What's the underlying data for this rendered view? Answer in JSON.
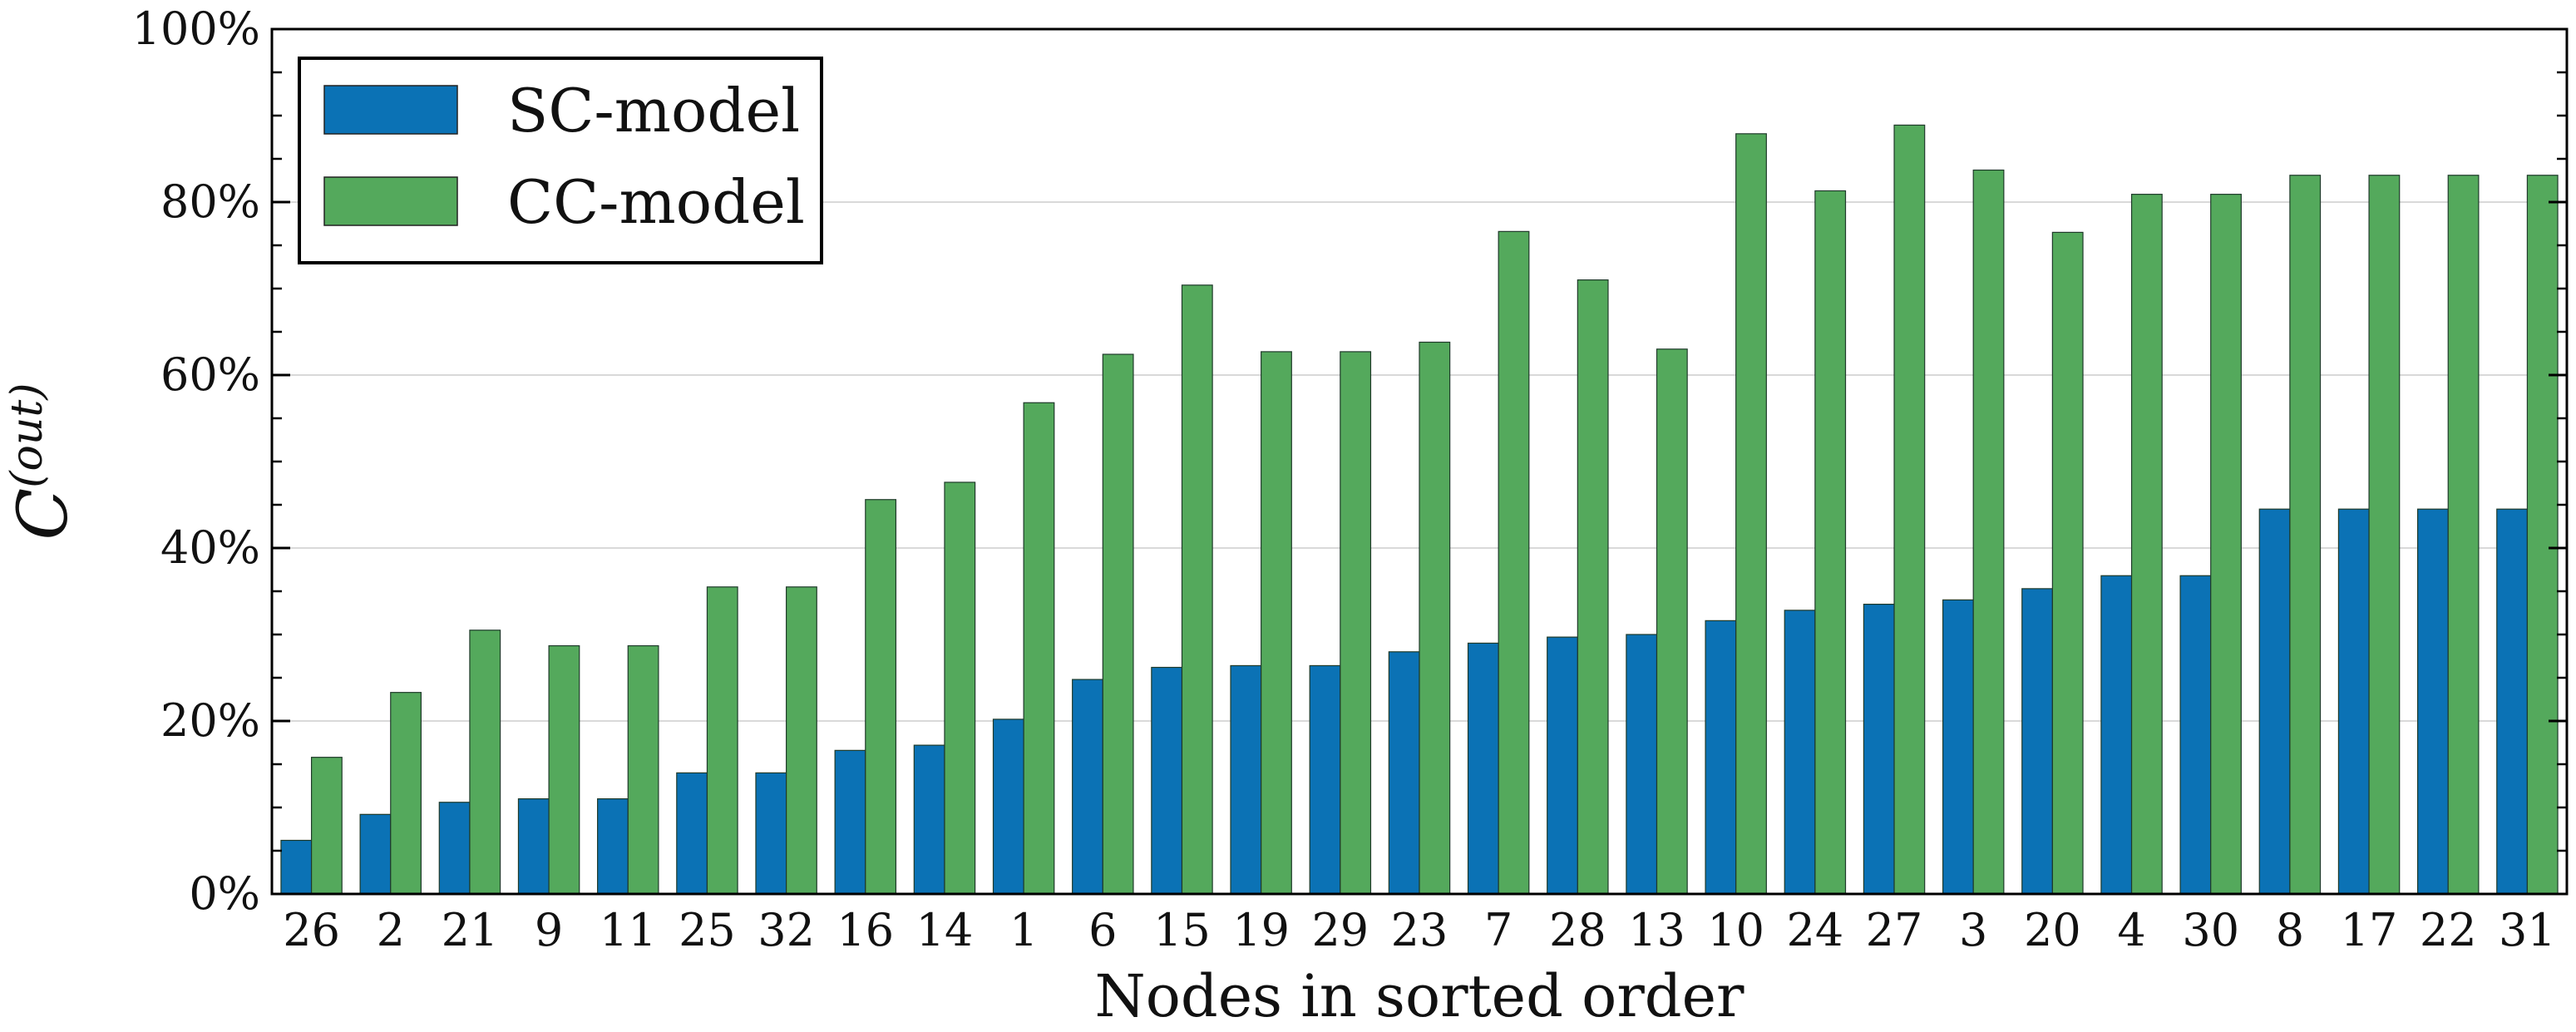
{
  "chart_data": {
    "type": "bar",
    "title": "",
    "xlabel": "Nodes in sorted order",
    "ylabel": "C",
    "ylabel_superscript": "(out)",
    "ylim": [
      0,
      100
    ],
    "y_ticks": [
      "0%",
      "20%",
      "40%",
      "60%",
      "80%",
      "100%"
    ],
    "y_tick_values": [
      0,
      20,
      40,
      60,
      80,
      100
    ],
    "grid": true,
    "legend_position": "top-left",
    "categories": [
      "26",
      "2",
      "21",
      "9",
      "11",
      "25",
      "32",
      "16",
      "14",
      "1",
      "6",
      "15",
      "19",
      "29",
      "23",
      "7",
      "28",
      "13",
      "10",
      "24",
      "27",
      "3",
      "20",
      "4",
      "30",
      "8",
      "17",
      "22",
      "31"
    ],
    "series": [
      {
        "name": "SC-model",
        "color": "#0b72b5",
        "values": [
          6.2,
          9.2,
          10.6,
          11.0,
          11.0,
          14.0,
          14.0,
          16.6,
          17.2,
          20.2,
          24.8,
          26.2,
          26.4,
          26.4,
          28.0,
          29.0,
          29.7,
          30.0,
          31.6,
          32.8,
          33.5,
          34.0,
          35.3,
          36.8,
          36.8,
          44.5,
          44.5,
          44.5,
          44.5
        ]
      },
      {
        "name": "CC-model",
        "color": "#54a95c",
        "values": [
          15.8,
          23.3,
          30.5,
          28.7,
          28.7,
          35.5,
          35.5,
          45.6,
          47.6,
          56.8,
          62.4,
          70.4,
          62.7,
          62.7,
          63.8,
          76.6,
          71.0,
          63.0,
          87.9,
          81.3,
          88.9,
          83.7,
          76.5,
          80.9,
          80.9,
          83.1,
          83.1,
          83.1,
          83.1
        ]
      }
    ]
  }
}
